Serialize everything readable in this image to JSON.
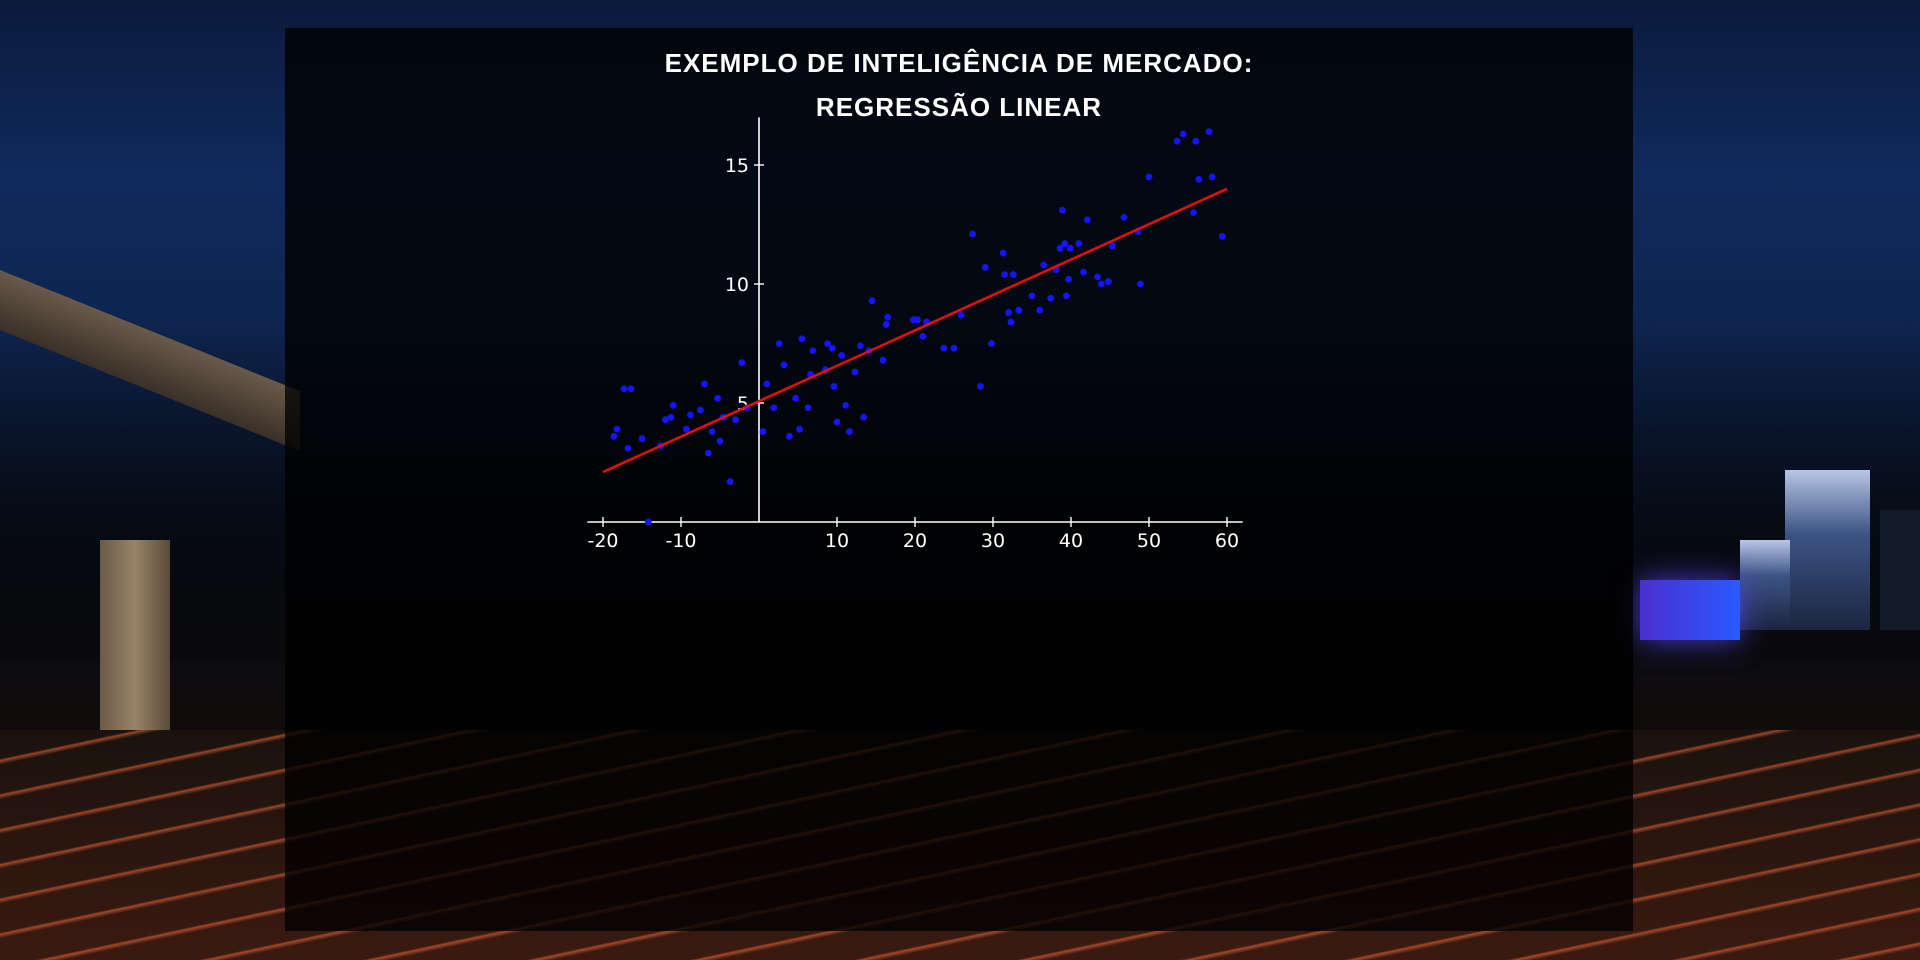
{
  "chart_data": {
    "type": "scatter",
    "title_line1": "EXEMPLO DE INTELIGÊNCIA DE MERCADO:",
    "title_line2": "REGRESSÃO LINEAR",
    "xlabel": "",
    "ylabel": "",
    "xlim": [
      -22,
      62
    ],
    "ylim": [
      0,
      17
    ],
    "x_ticks": [
      -20,
      -10,
      10,
      20,
      30,
      40,
      50,
      60
    ],
    "y_ticks": [
      5,
      10,
      15
    ],
    "grid": false,
    "point_color": "#1414ff",
    "line_color": "#e01010",
    "axis_color": "#ffffff",
    "regression_line": {
      "x": [
        -20,
        60
      ],
      "y": [
        2.1,
        14.0
      ]
    },
    "points": [
      {
        "x": -18.6,
        "y": 3.6
      },
      {
        "x": -18.2,
        "y": 3.9
      },
      {
        "x": -17.3,
        "y": 5.6
      },
      {
        "x": -16.4,
        "y": 5.6
      },
      {
        "x": -16.8,
        "y": 3.1
      },
      {
        "x": -15.0,
        "y": 3.5
      },
      {
        "x": -14.2,
        "y": 0.0
      },
      {
        "x": -12.6,
        "y": 3.2
      },
      {
        "x": -12.0,
        "y": 4.3
      },
      {
        "x": -11.3,
        "y": 4.4
      },
      {
        "x": -11.0,
        "y": 4.9
      },
      {
        "x": -9.3,
        "y": 3.9
      },
      {
        "x": -8.8,
        "y": 4.5
      },
      {
        "x": -7.5,
        "y": 4.7
      },
      {
        "x": -7.0,
        "y": 5.8
      },
      {
        "x": -6.5,
        "y": 2.9
      },
      {
        "x": -6.0,
        "y": 3.8
      },
      {
        "x": -5.3,
        "y": 5.2
      },
      {
        "x": -5.0,
        "y": 3.4
      },
      {
        "x": -4.6,
        "y": 4.4
      },
      {
        "x": -3.7,
        "y": 1.7
      },
      {
        "x": -3.0,
        "y": 4.3
      },
      {
        "x": -2.2,
        "y": 6.7
      },
      {
        "x": -1.5,
        "y": 4.8
      },
      {
        "x": 0.5,
        "y": 3.8
      },
      {
        "x": 1.0,
        "y": 5.8
      },
      {
        "x": 1.9,
        "y": 4.8
      },
      {
        "x": 2.6,
        "y": 7.5
      },
      {
        "x": 3.2,
        "y": 6.6
      },
      {
        "x": 3.9,
        "y": 3.6
      },
      {
        "x": 4.7,
        "y": 5.2
      },
      {
        "x": 5.2,
        "y": 3.9
      },
      {
        "x": 5.5,
        "y": 7.7
      },
      {
        "x": 6.3,
        "y": 4.8
      },
      {
        "x": 6.6,
        "y": 6.2
      },
      {
        "x": 6.9,
        "y": 7.2
      },
      {
        "x": 8.5,
        "y": 6.4
      },
      {
        "x": 8.8,
        "y": 7.5
      },
      {
        "x": 9.4,
        "y": 7.3
      },
      {
        "x": 9.6,
        "y": 5.7
      },
      {
        "x": 10.0,
        "y": 4.2
      },
      {
        "x": 10.6,
        "y": 7.0
      },
      {
        "x": 11.1,
        "y": 4.9
      },
      {
        "x": 11.6,
        "y": 3.8
      },
      {
        "x": 12.3,
        "y": 6.3
      },
      {
        "x": 13.0,
        "y": 7.4
      },
      {
        "x": 13.4,
        "y": 4.4
      },
      {
        "x": 14.1,
        "y": 7.2
      },
      {
        "x": 14.5,
        "y": 9.3
      },
      {
        "x": 15.9,
        "y": 6.8
      },
      {
        "x": 16.3,
        "y": 8.3
      },
      {
        "x": 16.5,
        "y": 8.6
      },
      {
        "x": 19.8,
        "y": 8.5
      },
      {
        "x": 20.3,
        "y": 8.5
      },
      {
        "x": 21.0,
        "y": 7.8
      },
      {
        "x": 21.5,
        "y": 8.4
      },
      {
        "x": 23.7,
        "y": 7.3
      },
      {
        "x": 25.0,
        "y": 7.3
      },
      {
        "x": 25.9,
        "y": 8.7
      },
      {
        "x": 27.4,
        "y": 12.1
      },
      {
        "x": 28.4,
        "y": 5.7
      },
      {
        "x": 29.0,
        "y": 10.7
      },
      {
        "x": 29.8,
        "y": 7.5
      },
      {
        "x": 31.3,
        "y": 11.3
      },
      {
        "x": 31.5,
        "y": 10.4
      },
      {
        "x": 32.0,
        "y": 8.8
      },
      {
        "x": 32.3,
        "y": 8.4
      },
      {
        "x": 32.6,
        "y": 10.4
      },
      {
        "x": 33.3,
        "y": 8.9
      },
      {
        "x": 35.0,
        "y": 9.5
      },
      {
        "x": 36.0,
        "y": 8.9
      },
      {
        "x": 36.5,
        "y": 10.8
      },
      {
        "x": 37.4,
        "y": 9.4
      },
      {
        "x": 38.1,
        "y": 10.6
      },
      {
        "x": 38.6,
        "y": 11.5
      },
      {
        "x": 38.9,
        "y": 13.1
      },
      {
        "x": 39.2,
        "y": 11.7
      },
      {
        "x": 39.4,
        "y": 9.5
      },
      {
        "x": 39.7,
        "y": 10.2
      },
      {
        "x": 39.9,
        "y": 11.5
      },
      {
        "x": 41.0,
        "y": 11.7
      },
      {
        "x": 41.6,
        "y": 10.5
      },
      {
        "x": 42.1,
        "y": 12.7
      },
      {
        "x": 43.4,
        "y": 10.3
      },
      {
        "x": 43.9,
        "y": 10.0
      },
      {
        "x": 44.8,
        "y": 10.1
      },
      {
        "x": 45.3,
        "y": 11.6
      },
      {
        "x": 46.8,
        "y": 12.8
      },
      {
        "x": 48.6,
        "y": 12.2
      },
      {
        "x": 48.9,
        "y": 10.0
      },
      {
        "x": 50.0,
        "y": 14.5
      },
      {
        "x": 53.6,
        "y": 16.0
      },
      {
        "x": 54.4,
        "y": 16.3
      },
      {
        "x": 55.7,
        "y": 13.0
      },
      {
        "x": 56.0,
        "y": 16.0
      },
      {
        "x": 56.4,
        "y": 14.4
      },
      {
        "x": 57.7,
        "y": 16.4
      },
      {
        "x": 58.1,
        "y": 14.5
      },
      {
        "x": 59.4,
        "y": 12.0
      }
    ]
  }
}
